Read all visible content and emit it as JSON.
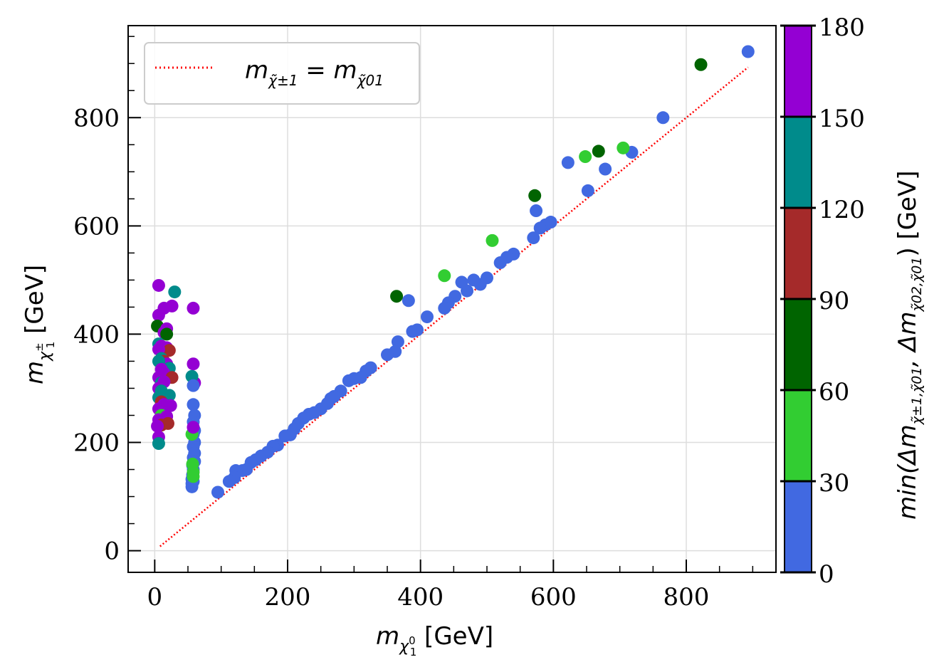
{
  "chart_data": {
    "type": "scatter",
    "x_axis": {
      "label_prefix": "m",
      "label_sub_italic": "χ",
      "label_sub_sub": "0",
      "label_sub_index": "1",
      "label_unit": " [GeV]",
      "range": [
        -40,
        935
      ],
      "ticks": [
        0,
        200,
        400,
        600,
        800
      ]
    },
    "y_axis": {
      "label_prefix": "m",
      "label_sub_italic": "χ",
      "label_sub_sub": "±",
      "label_sub_index": "1",
      "label_unit": "  [GeV]",
      "range": [
        -40,
        970
      ],
      "ticks": [
        0,
        200,
        400,
        600,
        800
      ]
    },
    "colorbar": {
      "label": "min(Δm_{χ±1,χ01}, Δm_{χ02,χ01}) [GeV]",
      "label_main": "min(Δm",
      "label_sub1": "χ̃±1,χ̃01",
      "label_mid": ", Δm",
      "label_sub2": "χ̃02,χ̃01",
      "label_end": ") [GeV]",
      "bounds": [
        0,
        30,
        60,
        90,
        120,
        150,
        180
      ],
      "tick_labels": [
        "0",
        "30",
        "60",
        "90",
        "120",
        "150",
        "180"
      ],
      "colors": [
        "#4169E1",
        "#32CD32",
        "#006400",
        "#A52A2A",
        "#008B8B",
        "#9400D3"
      ]
    },
    "legend": {
      "position": "top-left",
      "entry": "m_{χ±1} = m_{χ01}",
      "text_main": "m",
      "text_sub1": "χ̃±1",
      "text_eq": " = m",
      "text_sub2": "χ̃01",
      "line_color": "#FF0000",
      "line_style": "dotted"
    },
    "reference_line": {
      "x": [
        8,
        893
      ],
      "y": [
        8,
        893
      ]
    },
    "grid": true,
    "points": [
      [
        893,
        922,
        10
      ],
      [
        765,
        800,
        10
      ],
      [
        718,
        736,
        10
      ],
      [
        678,
        705,
        10
      ],
      [
        652,
        665,
        10
      ],
      [
        622,
        717,
        10
      ],
      [
        574,
        628,
        10
      ],
      [
        596,
        607,
        10
      ],
      [
        588,
        602,
        10
      ],
      [
        580,
        596,
        10
      ],
      [
        570,
        578,
        10
      ],
      [
        540,
        548,
        10
      ],
      [
        530,
        542,
        10
      ],
      [
        520,
        532,
        10
      ],
      [
        500,
        504,
        10
      ],
      [
        490,
        492,
        10
      ],
      [
        480,
        500,
        10
      ],
      [
        470,
        480,
        10
      ],
      [
        462,
        496,
        10
      ],
      [
        452,
        470,
        10
      ],
      [
        442,
        458,
        10
      ],
      [
        436,
        448,
        10
      ],
      [
        410,
        432,
        10
      ],
      [
        395,
        408,
        10
      ],
      [
        388,
        405,
        10
      ],
      [
        382,
        462,
        10
      ],
      [
        366,
        386,
        10
      ],
      [
        362,
        368,
        10
      ],
      [
        350,
        362,
        10
      ],
      [
        325,
        338,
        10
      ],
      [
        318,
        332,
        10
      ],
      [
        310,
        320,
        10
      ],
      [
        300,
        318,
        10
      ],
      [
        292,
        314,
        10
      ],
      [
        280,
        295,
        10
      ],
      [
        270,
        285,
        10
      ],
      [
        265,
        281,
        10
      ],
      [
        260,
        272,
        10
      ],
      [
        250,
        262,
        10
      ],
      [
        240,
        255,
        10
      ],
      [
        232,
        252,
        10
      ],
      [
        224,
        245,
        10
      ],
      [
        216,
        235,
        10
      ],
      [
        210,
        225,
        10
      ],
      [
        204,
        214,
        10
      ],
      [
        196,
        212,
        10
      ],
      [
        185,
        195,
        10
      ],
      [
        178,
        193,
        10
      ],
      [
        170,
        182,
        10
      ],
      [
        160,
        175,
        10
      ],
      [
        152,
        168,
        10
      ],
      [
        145,
        163,
        10
      ],
      [
        138,
        150,
        10
      ],
      [
        132,
        148,
        10
      ],
      [
        122,
        148,
        10
      ],
      [
        120,
        135,
        10
      ],
      [
        112,
        128,
        10
      ],
      [
        95,
        108,
        10
      ],
      [
        822,
        898,
        75
      ],
      [
        668,
        738,
        75
      ],
      [
        572,
        656,
        75
      ],
      [
        364,
        470,
        75
      ],
      [
        705,
        744,
        45
      ],
      [
        648,
        728,
        45
      ],
      [
        508,
        573,
        45
      ],
      [
        436,
        508,
        45
      ],
      [
        58,
        270,
        10
      ],
      [
        60,
        250,
        10
      ],
      [
        58,
        238,
        10
      ],
      [
        60,
        222,
        10
      ],
      [
        58,
        215,
        10
      ],
      [
        60,
        200,
        10
      ],
      [
        58,
        192,
        10
      ],
      [
        60,
        180,
        10
      ],
      [
        58,
        172,
        10
      ],
      [
        60,
        165,
        10
      ],
      [
        57,
        158,
        10
      ],
      [
        58,
        150,
        10
      ],
      [
        57,
        140,
        10
      ],
      [
        56,
        132,
        10
      ],
      [
        56,
        124,
        10
      ],
      [
        58,
        128,
        10
      ],
      [
        56,
        118,
        10
      ],
      [
        57,
        160,
        45
      ],
      [
        58,
        145,
        45
      ],
      [
        58,
        137,
        45
      ],
      [
        56,
        215,
        45
      ],
      [
        58,
        448,
        165
      ],
      [
        58,
        345,
        165
      ],
      [
        60,
        310,
        165
      ],
      [
        58,
        228,
        165
      ],
      [
        56,
        322,
        135
      ],
      [
        58,
        305,
        10
      ],
      [
        30,
        478,
        135
      ],
      [
        6,
        490,
        165
      ],
      [
        14,
        448,
        165
      ],
      [
        26,
        452,
        165
      ],
      [
        6,
        435,
        165
      ],
      [
        4,
        415,
        75
      ],
      [
        18,
        410,
        165
      ],
      [
        14,
        403,
        165
      ],
      [
        18,
        400,
        75
      ],
      [
        6,
        382,
        135
      ],
      [
        10,
        378,
        165
      ],
      [
        18,
        375,
        165
      ],
      [
        22,
        370,
        105
      ],
      [
        6,
        372,
        165
      ],
      [
        10,
        355,
        135
      ],
      [
        14,
        350,
        105
      ],
      [
        18,
        345,
        165
      ],
      [
        6,
        350,
        135
      ],
      [
        22,
        337,
        135
      ],
      [
        10,
        335,
        165
      ],
      [
        14,
        328,
        165
      ],
      [
        26,
        320,
        105
      ],
      [
        6,
        320,
        165
      ],
      [
        10,
        310,
        135
      ],
      [
        14,
        312,
        165
      ],
      [
        6,
        300,
        165
      ],
      [
        10,
        295,
        135
      ],
      [
        22,
        287,
        135
      ],
      [
        6,
        283,
        135
      ],
      [
        10,
        275,
        105
      ],
      [
        14,
        270,
        165
      ],
      [
        24,
        268,
        165
      ],
      [
        6,
        262,
        165
      ],
      [
        10,
        250,
        45
      ],
      [
        18,
        248,
        165
      ],
      [
        6,
        242,
        165
      ],
      [
        20,
        235,
        105
      ],
      [
        10,
        232,
        105
      ],
      [
        4,
        230,
        165
      ],
      [
        6,
        210,
        165
      ],
      [
        6,
        198,
        135
      ]
    ]
  }
}
